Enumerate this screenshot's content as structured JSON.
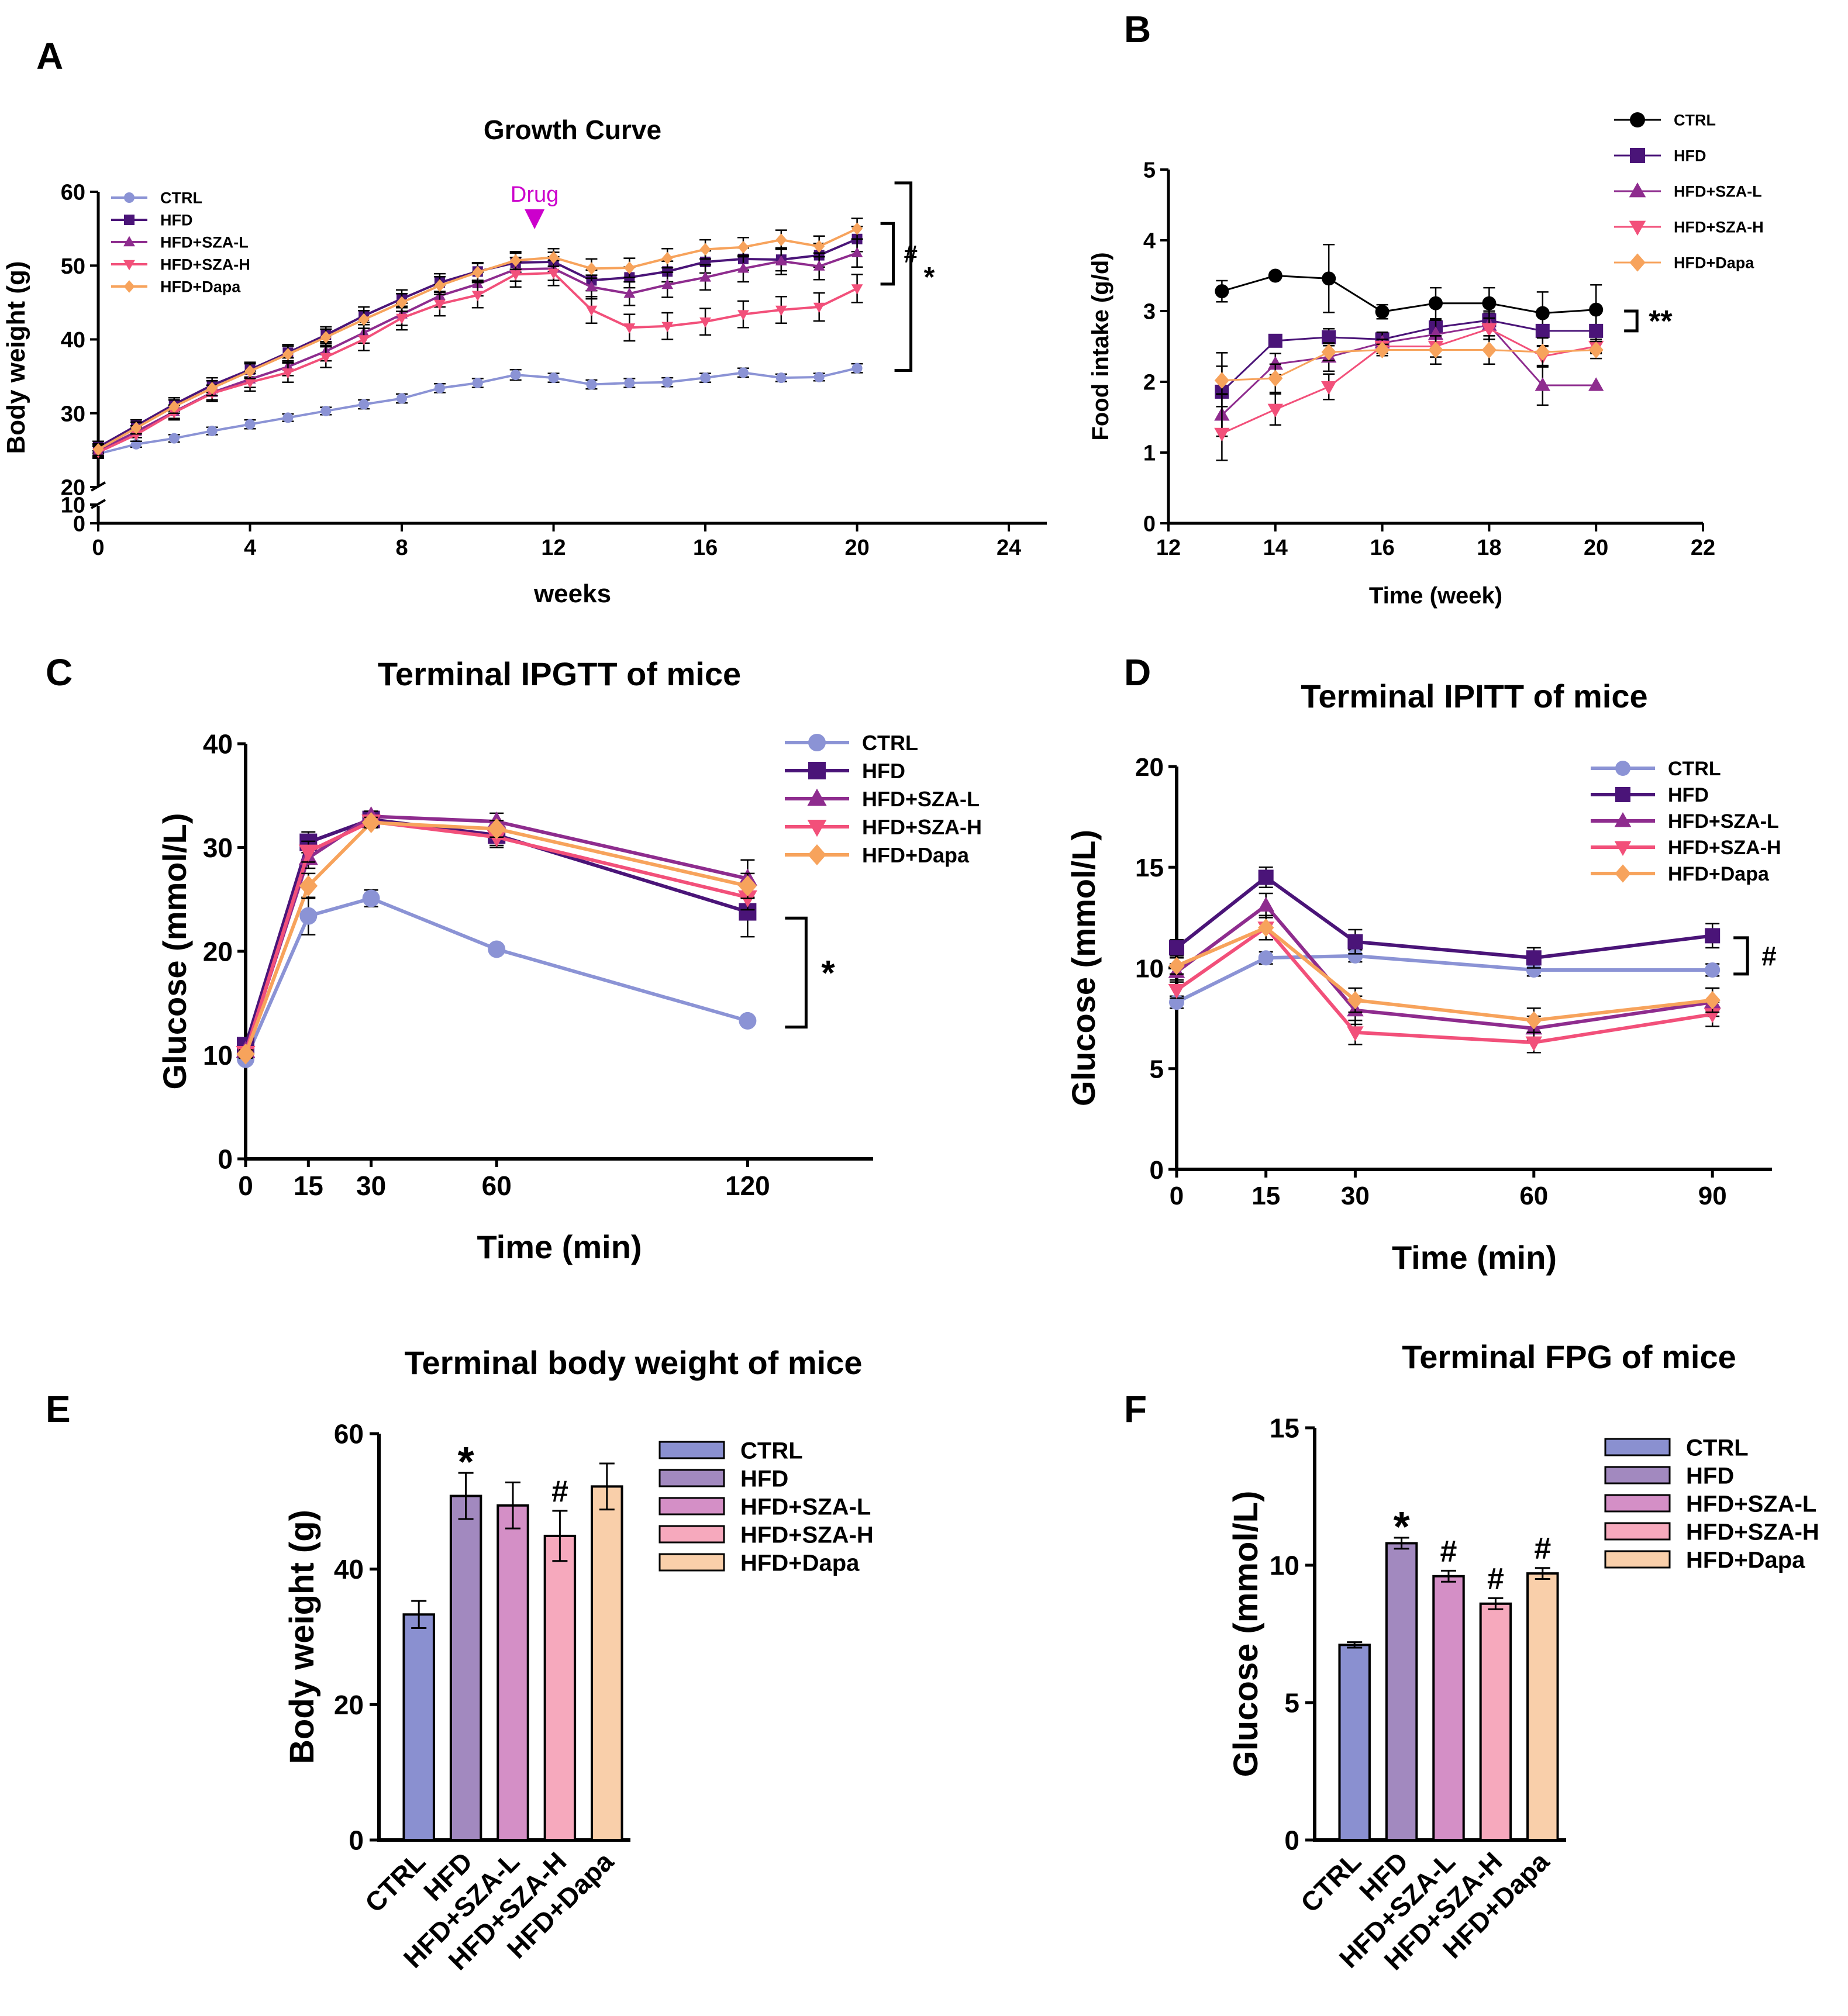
{
  "panel_letters": [
    "A",
    "B",
    "C",
    "D",
    "E",
    "F"
  ],
  "annotations": {
    "drug_label": "Drug",
    "drug_color": "#cc00cc",
    "sig_star": "*",
    "sig_hash": "#",
    "sig_double_star": "**"
  },
  "colors": {
    "CTRL": "#8b93d5",
    "CTRL_B": "#000000",
    "HFD": "#4a1478",
    "HFD+SZA-L": "#8e2c8e",
    "HFD+SZA-H": "#f2507a",
    "HFD+Dapa": "#f7a35c"
  },
  "bar_colors": {
    "CTRL": "#8a90d0",
    "HFD": "#a289bf",
    "HFD+SZA-L": "#d48fc6",
    "HFD+SZA-H": "#f6a9bd",
    "HFD+Dapa": "#f9cfaa"
  },
  "chart_data": [
    {
      "id": "A",
      "type": "line",
      "title": "Growth Curve",
      "xlabel": "weeks",
      "ylabel": "Body weight (g)",
      "xlim": [
        0,
        25
      ],
      "ylim": [
        0,
        60
      ],
      "axis_break": [
        10,
        20
      ],
      "xticks": [
        0,
        4,
        8,
        12,
        16,
        20,
        24
      ],
      "yticks": [
        0,
        10,
        20,
        30,
        40,
        50,
        60
      ],
      "legend": [
        "CTRL",
        "HFD",
        "HFD+SZA-L",
        "HFD+SZA-H",
        "HFD+Dapa"
      ],
      "x": [
        0,
        1,
        2,
        3,
        4,
        5,
        6,
        7,
        8,
        9,
        10,
        11,
        12,
        13,
        14,
        15,
        16,
        17,
        18,
        19,
        20
      ],
      "series": [
        {
          "name": "CTRL",
          "marker": "circle",
          "values": [
            24.5,
            25.8,
            26.6,
            27.6,
            28.5,
            29.4,
            30.3,
            31.2,
            32.0,
            33.4,
            34.1,
            35.2,
            34.8,
            33.9,
            34.1,
            34.2,
            34.8,
            35.5,
            34.8,
            34.9,
            36.1
          ],
          "errors": [
            0.4,
            0.4,
            0.5,
            0.5,
            0.6,
            0.5,
            0.5,
            0.6,
            0.6,
            0.6,
            0.6,
            0.7,
            0.6,
            0.6,
            0.6,
            0.6,
            0.6,
            0.6,
            0.5,
            0.5,
            0.6
          ]
        },
        {
          "name": "HFD",
          "marker": "square",
          "values": [
            25.4,
            28.3,
            31.2,
            33.8,
            35.9,
            38.2,
            40.6,
            43.2,
            45.5,
            47.7,
            49.2,
            50.4,
            50.5,
            48.0,
            48.4,
            49.2,
            50.5,
            50.9,
            50.8,
            51.4,
            53.6
          ],
          "errors": [
            0.8,
            0.8,
            0.9,
            1.0,
            1.0,
            1.1,
            1.1,
            1.2,
            1.2,
            1.2,
            1.2,
            1.3,
            1.3,
            1.4,
            1.4,
            1.4,
            1.5,
            1.5,
            1.5,
            1.6,
            1.7
          ]
        },
        {
          "name": "HFD+SZA-L",
          "marker": "triangle",
          "values": [
            24.9,
            27.5,
            30.2,
            32.8,
            34.6,
            36.3,
            38.4,
            40.9,
            43.4,
            45.9,
            47.5,
            49.5,
            49.6,
            47.1,
            46.2,
            47.4,
            48.4,
            49.6,
            50.6,
            49.9,
            51.7
          ],
          "errors": [
            0.8,
            0.8,
            0.9,
            1.0,
            1.1,
            1.2,
            1.3,
            1.4,
            1.5,
            1.5,
            1.6,
            1.6,
            1.6,
            1.6,
            1.6,
            1.7,
            1.7,
            1.8,
            1.8,
            1.8,
            1.9
          ]
        },
        {
          "name": "HFD+SZA-H",
          "marker": "triangle-down",
          "values": [
            24.7,
            27.1,
            30.1,
            32.7,
            34.2,
            35.5,
            37.6,
            40.0,
            42.9,
            44.8,
            46.0,
            48.8,
            49.0,
            44.0,
            41.6,
            41.8,
            42.4,
            43.4,
            44.0,
            44.4,
            46.9
          ],
          "errors": [
            0.8,
            0.9,
            1.0,
            1.1,
            1.2,
            1.3,
            1.4,
            1.5,
            1.6,
            1.6,
            1.7,
            1.7,
            1.7,
            1.8,
            1.8,
            1.8,
            1.8,
            1.8,
            1.8,
            1.9,
            1.9
          ]
        },
        {
          "name": "HFD+Dapa",
          "marker": "diamond",
          "values": [
            25.1,
            28.0,
            30.9,
            33.4,
            35.7,
            38.0,
            40.3,
            42.7,
            45.0,
            47.3,
            49.1,
            50.7,
            51.1,
            49.6,
            49.7,
            51.0,
            52.2,
            52.5,
            53.5,
            52.6,
            55.0
          ],
          "errors": [
            0.8,
            0.8,
            0.9,
            1.0,
            1.0,
            1.1,
            1.1,
            1.2,
            1.2,
            1.2,
            1.2,
            1.2,
            1.2,
            1.3,
            1.3,
            1.3,
            1.3,
            1.3,
            1.3,
            1.4,
            1.4
          ]
        }
      ]
    },
    {
      "id": "B",
      "type": "line",
      "title": "",
      "xlabel": "Time (week)",
      "ylabel": "Food intake (g/d)",
      "xlim": [
        12,
        22
      ],
      "ylim": [
        0,
        5
      ],
      "xticks": [
        12,
        14,
        16,
        18,
        20,
        22
      ],
      "yticks": [
        0,
        1,
        2,
        3,
        4,
        5
      ],
      "legend": [
        "CTRL",
        "HFD",
        "HFD+SZA-L",
        "HFD+SZA-H",
        "HFD+Dapa"
      ],
      "x": [
        13,
        14,
        15,
        16,
        17,
        18,
        19,
        20
      ],
      "series": [
        {
          "name": "CTRL",
          "marker": "circle",
          "values": [
            3.28,
            3.5,
            3.46,
            2.99,
            3.11,
            3.11,
            2.97,
            3.02
          ],
          "errors": [
            0.15,
            0.05,
            0.48,
            0.1,
            0.22,
            0.22,
            0.3,
            0.35
          ]
        },
        {
          "name": "HFD",
          "marker": "square",
          "values": [
            1.86,
            2.58,
            2.63,
            2.6,
            2.77,
            2.87,
            2.72,
            2.72
          ],
          "errors": [
            0.55,
            0.08,
            0.12,
            0.08,
            0.12,
            0.1,
            0.22,
            0.3
          ]
        },
        {
          "name": "HFD+SZA-L",
          "marker": "triangle",
          "values": [
            1.53,
            2.25,
            2.35,
            2.55,
            2.67,
            2.8,
            1.95,
            1.95
          ],
          "errors": [
            0.3,
            0.15,
            0.2,
            0.15,
            0.2,
            0.2,
            0.28,
            0.0
          ]
        },
        {
          "name": "HFD+SZA-H",
          "marker": "triangle-down",
          "values": [
            1.27,
            1.61,
            1.93,
            2.5,
            2.5,
            2.75,
            2.36,
            2.5
          ],
          "errors": [
            0.38,
            0.22,
            0.18,
            0.1,
            0.15,
            0.15,
            0.15,
            0.1
          ]
        },
        {
          "name": "HFD+Dapa",
          "marker": "diamond",
          "values": [
            2.02,
            2.05,
            2.42,
            2.45,
            2.45,
            2.45,
            2.42,
            2.45
          ],
          "errors": [
            0.2,
            0.2,
            0.12,
            0.08,
            0.2,
            0.2,
            0.2,
            0.12
          ]
        }
      ]
    },
    {
      "id": "C",
      "type": "line",
      "title": "Terminal IPGTT of mice",
      "xlabel": "Time (min)",
      "ylabel": "Glucose (mmol/L)",
      "xlim": [
        0,
        150
      ],
      "ylim": [
        0,
        40
      ],
      "xticks": [
        0,
        15,
        30,
        60,
        120
      ],
      "yticks": [
        0,
        10,
        20,
        30,
        40
      ],
      "legend": [
        "CTRL",
        "HFD",
        "HFD+SZA-L",
        "HFD+SZA-H",
        "HFD+Dapa"
      ],
      "x": [
        0,
        15,
        30,
        60,
        120
      ],
      "series": [
        {
          "name": "CTRL",
          "marker": "circle",
          "values": [
            9.6,
            23.4,
            25.1,
            20.2,
            13.3
          ],
          "errors": [
            0.3,
            1.8,
            0.8,
            0.4,
            0.4
          ]
        },
        {
          "name": "HFD",
          "marker": "square",
          "values": [
            10.9,
            30.5,
            32.7,
            31.2,
            23.8
          ],
          "errors": [
            0.4,
            1.0,
            0.5,
            1.2,
            2.4
          ]
        },
        {
          "name": "HFD+SZA-L",
          "marker": "triangle",
          "values": [
            10.4,
            29.0,
            33.0,
            32.5,
            27.0
          ],
          "errors": [
            0.4,
            1.0,
            0.5,
            0.8,
            1.8
          ]
        },
        {
          "name": "HFD+SZA-H",
          "marker": "triangle-down",
          "values": [
            10.2,
            29.6,
            32.5,
            31.0,
            25.2
          ],
          "errors": [
            0.4,
            1.0,
            0.5,
            0.8,
            1.2
          ]
        },
        {
          "name": "HFD+Dapa",
          "marker": "diamond",
          "values": [
            10.1,
            26.3,
            32.4,
            31.8,
            26.3
          ],
          "errors": [
            0.4,
            1.2,
            0.5,
            0.8,
            1.2
          ]
        }
      ]
    },
    {
      "id": "D",
      "type": "line",
      "title": "Terminal IPITT of mice",
      "xlabel": "Time (min)",
      "ylabel": "Glucose (mmol/L)",
      "xlim": [
        0,
        100
      ],
      "ylim": [
        0,
        20
      ],
      "xticks": [
        0,
        15,
        30,
        60,
        90
      ],
      "yticks": [
        0,
        5,
        10,
        15,
        20
      ],
      "legend": [
        "CTRL",
        "HFD",
        "HFD+SZA-L",
        "HFD+SZA-H",
        "HFD+Dapa"
      ],
      "x": [
        0,
        15,
        30,
        60,
        90
      ],
      "series": [
        {
          "name": "CTRL",
          "marker": "circle",
          "values": [
            8.3,
            10.5,
            10.6,
            9.9,
            9.9
          ],
          "errors": [
            0.3,
            0.3,
            0.3,
            0.3,
            0.3
          ]
        },
        {
          "name": "HFD",
          "marker": "square",
          "values": [
            11.0,
            14.5,
            11.3,
            10.5,
            11.6
          ],
          "errors": [
            0.4,
            0.5,
            0.6,
            0.5,
            0.6
          ]
        },
        {
          "name": "HFD+SZA-L",
          "marker": "triangle",
          "values": [
            9.8,
            13.1,
            7.9,
            7.0,
            8.3
          ],
          "errors": [
            0.4,
            0.6,
            0.7,
            0.6,
            0.7
          ]
        },
        {
          "name": "HFD+SZA-H",
          "marker": "triangle-down",
          "values": [
            8.9,
            12.0,
            6.8,
            6.3,
            7.7
          ],
          "errors": [
            0.4,
            0.6,
            0.6,
            0.5,
            0.6
          ]
        },
        {
          "name": "HFD+Dapa",
          "marker": "diamond",
          "values": [
            10.1,
            12.0,
            8.4,
            7.4,
            8.4
          ],
          "errors": [
            0.4,
            0.6,
            0.6,
            0.6,
            0.6
          ]
        }
      ]
    },
    {
      "id": "E",
      "type": "bar",
      "title": "Terminal body weight of mice",
      "xlabel": "",
      "ylabel": "Body weight (g)",
      "ylim": [
        0,
        60
      ],
      "yticks": [
        0,
        20,
        40,
        60
      ],
      "categories": [
        "CTRL",
        "HFD",
        "HFD+SZA-L",
        "HFD+SZA-H",
        "HFD+Dapa"
      ],
      "values": [
        33.3,
        50.8,
        49.4,
        44.9,
        52.2
      ],
      "errors": [
        2.0,
        3.4,
        3.4,
        3.7,
        3.4
      ],
      "markers": [
        "",
        "*",
        "",
        "#",
        ""
      ],
      "legend": [
        "CTRL",
        "HFD",
        "HFD+SZA-L",
        "HFD+SZA-H",
        "HFD+Dapa"
      ]
    },
    {
      "id": "F",
      "type": "bar",
      "title": "Terminal FPG of mice",
      "xlabel": "",
      "ylabel": "Glucose (mmol/L)",
      "ylim": [
        0,
        15
      ],
      "yticks": [
        0,
        5,
        10,
        15
      ],
      "categories": [
        "CTRL",
        "HFD",
        "HFD+SZA-L",
        "HFD+SZA-H",
        "HFD+Dapa"
      ],
      "values": [
        7.1,
        10.8,
        9.6,
        8.6,
        9.7
      ],
      "errors": [
        0.1,
        0.2,
        0.2,
        0.2,
        0.2
      ],
      "markers": [
        "",
        "*",
        "#",
        "#",
        "#"
      ],
      "legend": [
        "CTRL",
        "HFD",
        "HFD+SZA-L",
        "HFD+SZA-H",
        "HFD+Dapa"
      ]
    }
  ]
}
